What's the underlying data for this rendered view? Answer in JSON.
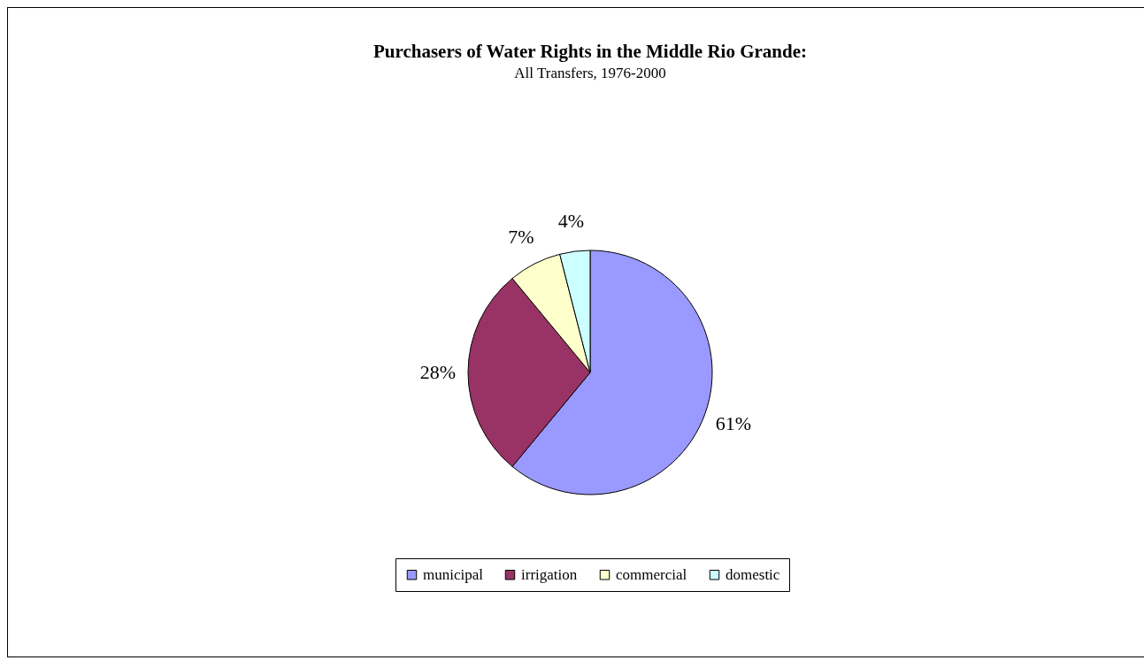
{
  "chart_data": {
    "type": "pie",
    "title": "Purchasers of Water Rights in the Middle Rio Grande:",
    "subtitle": "All Transfers, 1976-2000",
    "categories": [
      "municipal",
      "irrigation",
      "commercial",
      "domestic"
    ],
    "values": [
      61,
      28,
      7,
      4
    ],
    "value_labels": [
      "61%",
      "28%",
      "7%",
      "4%"
    ],
    "colors": [
      "#9999ff",
      "#993366",
      "#ffffcc",
      "#ccffff"
    ],
    "legend": "bottom"
  }
}
